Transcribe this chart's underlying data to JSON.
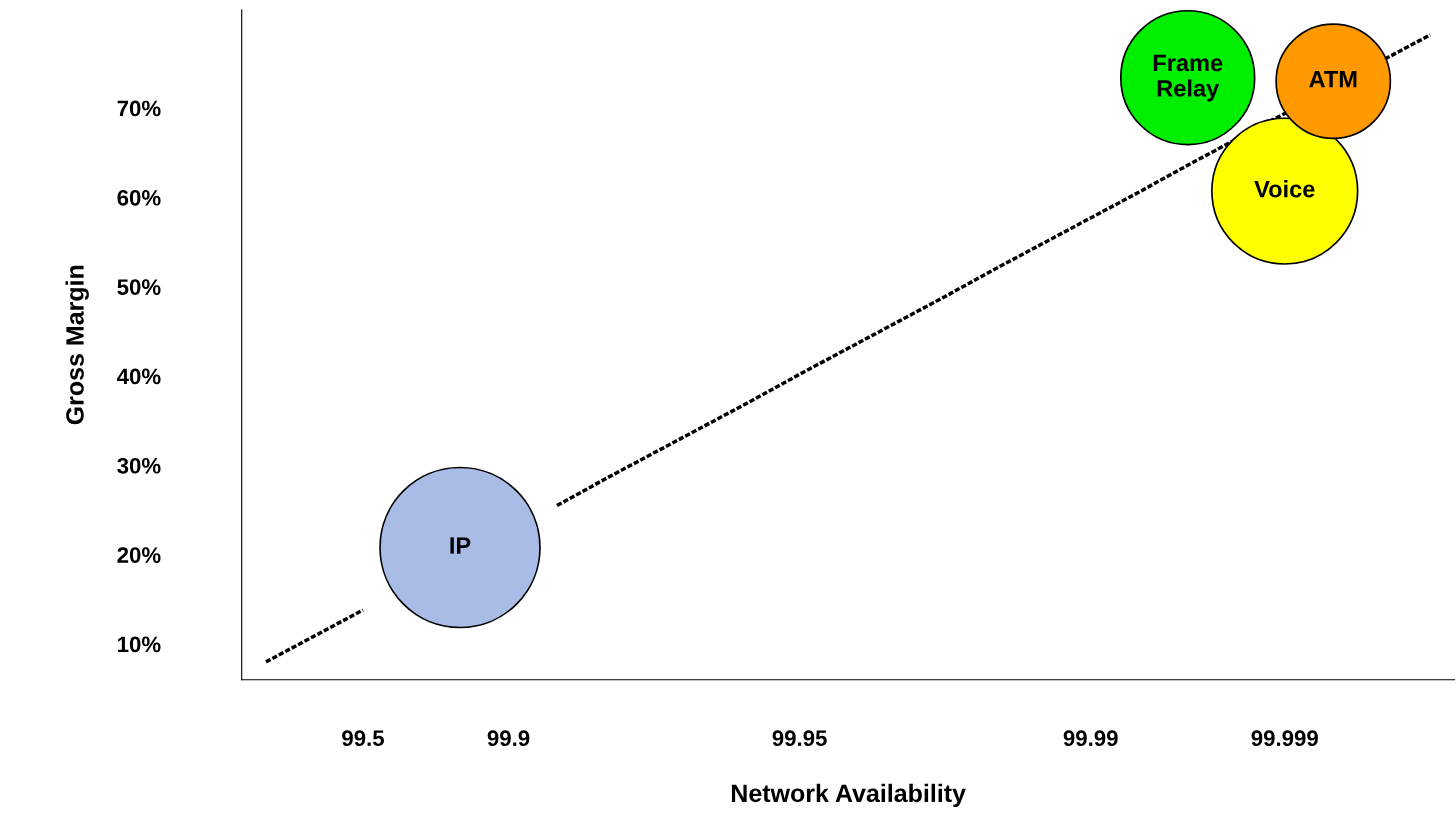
{
  "chart_data": {
    "type": "bubble",
    "xlabel": "Network Availability",
    "ylabel": "Gross Margin",
    "categories": [
      null,
      null,
      "99.5",
      null,
      null,
      "99.9",
      null,
      null,
      null,
      null,
      null,
      "99.95",
      null,
      null,
      null,
      null,
      null,
      "99.99",
      null,
      null,
      null,
      "99.999",
      null,
      null,
      null
    ],
    "ylim": [
      6,
      81
    ],
    "yticks": [
      {
        "value": 10,
        "label": "10%"
      },
      {
        "value": 20,
        "label": "20%"
      },
      {
        "value": 30,
        "label": "30%"
      },
      {
        "value": 40,
        "label": "40%"
      },
      {
        "value": 50,
        "label": "50%"
      },
      {
        "value": 60,
        "label": "60%"
      },
      {
        "value": 70,
        "label": "70%"
      }
    ],
    "grid": false,
    "legend": false,
    "series": [
      {
        "type": "line",
        "color": "#000000",
        "line_style": "dotted",
        "marker": "none",
        "values": [
          8.0,
          10.9,
          13.8,
          null,
          null,
          null,
          25.5,
          28.5,
          31.4,
          34.3,
          37.2,
          40.2,
          43.1,
          46.0,
          48.9,
          51.9,
          54.8,
          57.7,
          60.6,
          63.6,
          66.5,
          69.4,
          72.3,
          75.3,
          78.2
        ]
      },
      {
        "name": "IP",
        "color": "#a9bce6",
        "values": [
          null,
          null,
          null,
          null,
          20.8,
          null,
          null,
          null,
          null,
          null,
          null,
          null,
          null,
          null,
          null,
          null,
          null,
          null,
          null,
          null,
          null,
          null,
          null,
          null,
          null
        ],
        "sizes": [
          null,
          null,
          null,
          null,
          1,
          null,
          null,
          null,
          null,
          null,
          null,
          null,
          null,
          null,
          null,
          null,
          null,
          null,
          null,
          null,
          null,
          null,
          null,
          null,
          null
        ]
      },
      {
        "name": "Voice",
        "color": "#ffff00",
        "values": [
          null,
          null,
          null,
          null,
          null,
          null,
          null,
          null,
          null,
          null,
          null,
          null,
          null,
          null,
          null,
          null,
          null,
          null,
          null,
          null,
          null,
          60.7,
          null,
          null,
          null
        ],
        "sizes": [
          null,
          null,
          null,
          null,
          null,
          null,
          null,
          null,
          null,
          null,
          null,
          null,
          null,
          null,
          null,
          null,
          null,
          null,
          null,
          null,
          null,
          0.83,
          null,
          null,
          null
        ]
      },
      {
        "name": "ATM",
        "color": "#ff9900",
        "values": [
          null,
          null,
          null,
          null,
          null,
          null,
          null,
          null,
          null,
          null,
          null,
          null,
          null,
          null,
          null,
          null,
          null,
          null,
          null,
          null,
          null,
          null,
          73.0,
          null,
          null
        ],
        "sizes": [
          null,
          null,
          null,
          null,
          null,
          null,
          null,
          null,
          null,
          null,
          null,
          null,
          null,
          null,
          null,
          null,
          null,
          null,
          null,
          null,
          null,
          null,
          0.51,
          null,
          null
        ]
      },
      {
        "name": "Frame\nRelay",
        "color": "#00ee00",
        "values": [
          null,
          null,
          null,
          null,
          null,
          null,
          null,
          null,
          null,
          null,
          null,
          null,
          null,
          null,
          null,
          null,
          null,
          null,
          null,
          73.4,
          null,
          null,
          null,
          null,
          null
        ],
        "sizes": [
          null,
          null,
          null,
          null,
          null,
          null,
          null,
          null,
          null,
          null,
          null,
          null,
          null,
          null,
          null,
          null,
          null,
          null,
          null,
          0.7,
          null,
          null,
          null,
          null,
          null
        ]
      }
    ]
  }
}
